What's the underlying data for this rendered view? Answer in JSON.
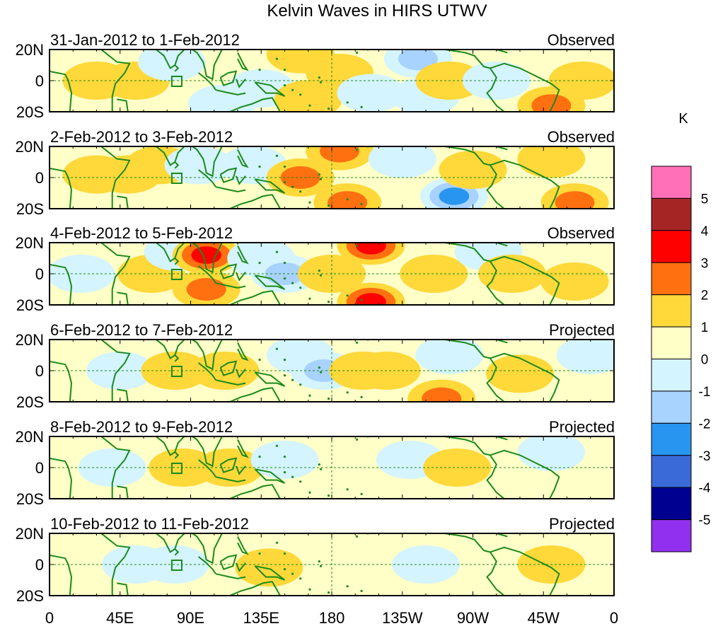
{
  "chart_data": {
    "type": "heatmap",
    "title": "Kelvin Waves in HIRS UTWV",
    "units": "K",
    "x_ticks": [
      "0",
      "45E",
      "90E",
      "135E",
      "180",
      "135W",
      "90W",
      "45W",
      "0"
    ],
    "x_range_deg_east": [
      0,
      360
    ],
    "y_ticks": [
      "20N",
      "0",
      "20S"
    ],
    "y_range_deg": [
      -20,
      20
    ],
    "colorbar": {
      "labels": [
        "5",
        "4",
        "3",
        "2",
        "1",
        "0",
        "-1",
        "-2",
        "-3",
        "-4",
        "-5"
      ],
      "colors": [
        "#ff70b8",
        "#a52525",
        "#ff0000",
        "#ff7010",
        "#ffd83a",
        "#ffffc8",
        "#d4f4ff",
        "#a8d2ff",
        "#2896f0",
        "#3a6ad8",
        "#000090",
        "#9130ee"
      ]
    },
    "panels": [
      {
        "period": "31-Jan-2012 to 1-Feb-2012",
        "status": "Observed",
        "anomalies": [
          {
            "lon": 30,
            "lat": 0,
            "v": 1
          },
          {
            "lon": 55,
            "lat": 0,
            "v": 1
          },
          {
            "lon": 78,
            "lat": 12,
            "v": -1
          },
          {
            "lon": 110,
            "lat": -15,
            "v": -1
          },
          {
            "lon": 135,
            "lat": -5,
            "v": -1
          },
          {
            "lon": 160,
            "lat": 17,
            "v": 1
          },
          {
            "lon": 185,
            "lat": 5,
            "v": 1
          },
          {
            "lon": 165,
            "lat": -12,
            "v": 1
          },
          {
            "lon": 205,
            "lat": -8,
            "v": -1
          },
          {
            "lon": 235,
            "lat": 14,
            "v": -2
          },
          {
            "lon": 240,
            "lat": -10,
            "v": -1
          },
          {
            "lon": 255,
            "lat": 0,
            "v": 1
          },
          {
            "lon": 285,
            "lat": 0,
            "v": -1
          },
          {
            "lon": 320,
            "lat": -16,
            "v": 2
          },
          {
            "lon": 340,
            "lat": 0,
            "v": 1
          }
        ]
      },
      {
        "period": "2-Feb-2012 to 3-Feb-2012",
        "status": "Observed",
        "anomalies": [
          {
            "lon": 30,
            "lat": 2,
            "v": 1
          },
          {
            "lon": 50,
            "lat": 2,
            "v": 1
          },
          {
            "lon": 70,
            "lat": 8,
            "v": 1
          },
          {
            "lon": 95,
            "lat": 8,
            "v": -1
          },
          {
            "lon": 130,
            "lat": 8,
            "v": -1
          },
          {
            "lon": 160,
            "lat": 0,
            "v": 2
          },
          {
            "lon": 185,
            "lat": 17,
            "v": 2
          },
          {
            "lon": 190,
            "lat": -16,
            "v": 2
          },
          {
            "lon": 225,
            "lat": 12,
            "v": -1
          },
          {
            "lon": 258,
            "lat": -12,
            "v": -3
          },
          {
            "lon": 270,
            "lat": 5,
            "v": 1
          },
          {
            "lon": 320,
            "lat": 12,
            "v": 1
          },
          {
            "lon": 335,
            "lat": -16,
            "v": 2
          }
        ]
      },
      {
        "period": "4-Feb-2012 to 5-Feb-2012",
        "status": "Observed",
        "anomalies": [
          {
            "lon": 20,
            "lat": 0,
            "v": -1
          },
          {
            "lon": 65,
            "lat": 0,
            "v": 1
          },
          {
            "lon": 82,
            "lat": 14,
            "v": -1
          },
          {
            "lon": 100,
            "lat": 12,
            "v": 3
          },
          {
            "lon": 100,
            "lat": -10,
            "v": 2
          },
          {
            "lon": 135,
            "lat": 10,
            "v": -1
          },
          {
            "lon": 150,
            "lat": 0,
            "v": -2
          },
          {
            "lon": 180,
            "lat": 0,
            "v": 1
          },
          {
            "lon": 205,
            "lat": 18,
            "v": 3
          },
          {
            "lon": 205,
            "lat": -18,
            "v": 3
          },
          {
            "lon": 245,
            "lat": 0,
            "v": 1
          },
          {
            "lon": 280,
            "lat": 14,
            "v": -1
          },
          {
            "lon": 295,
            "lat": 0,
            "v": 1
          },
          {
            "lon": 335,
            "lat": -5,
            "v": 1
          }
        ]
      },
      {
        "period": "6-Feb-2012 to 7-Feb-2012",
        "status": "Projected",
        "anomalies": [
          {
            "lon": 45,
            "lat": 0,
            "v": -1
          },
          {
            "lon": 80,
            "lat": 0,
            "v": 1
          },
          {
            "lon": 112,
            "lat": 0,
            "v": 1
          },
          {
            "lon": 160,
            "lat": 10,
            "v": -1
          },
          {
            "lon": 175,
            "lat": 0,
            "v": -2
          },
          {
            "lon": 200,
            "lat": 0,
            "v": 1
          },
          {
            "lon": 215,
            "lat": 0,
            "v": 1
          },
          {
            "lon": 255,
            "lat": 10,
            "v": -1
          },
          {
            "lon": 250,
            "lat": -18,
            "v": 2
          },
          {
            "lon": 300,
            "lat": -2,
            "v": 1
          },
          {
            "lon": 345,
            "lat": 10,
            "v": -1
          }
        ]
      },
      {
        "period": "8-Feb-2012 to 9-Feb-2012",
        "status": "Projected",
        "anomalies": [
          {
            "lon": 40,
            "lat": 0,
            "v": -1
          },
          {
            "lon": 85,
            "lat": 0,
            "v": 1
          },
          {
            "lon": 115,
            "lat": 0,
            "v": 1
          },
          {
            "lon": 150,
            "lat": 5,
            "v": -1
          },
          {
            "lon": 230,
            "lat": 5,
            "v": -1
          },
          {
            "lon": 260,
            "lat": 0,
            "v": 1
          },
          {
            "lon": 320,
            "lat": 10,
            "v": -1
          }
        ]
      },
      {
        "period": "10-Feb-2012 to 11-Feb-2012",
        "status": "Projected",
        "anomalies": [
          {
            "lon": 55,
            "lat": 0,
            "v": -1
          },
          {
            "lon": 80,
            "lat": 0,
            "v": -1
          },
          {
            "lon": 140,
            "lat": -2,
            "v": 1
          },
          {
            "lon": 240,
            "lat": 0,
            "v": -1
          },
          {
            "lon": 320,
            "lat": 0,
            "v": 1
          }
        ]
      }
    ]
  }
}
